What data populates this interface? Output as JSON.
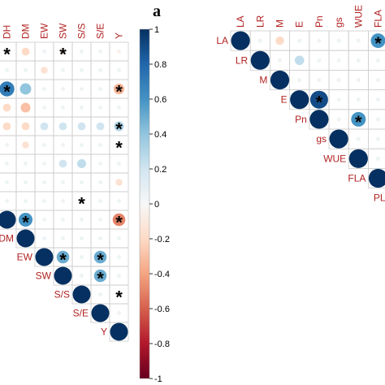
{
  "panel_label": "a",
  "chart_data": [
    {
      "type": "heatmap",
      "variables_top": [
        "DH",
        "DM",
        "EW",
        "SW",
        "S/S",
        "S/E",
        "Y"
      ],
      "variables_diag": [
        "DM",
        "EW",
        "SW",
        "S/S",
        "S/E",
        "Y"
      ],
      "cells": [
        {
          "r": 0,
          "c": 0,
          "v": 0.05,
          "star": true
        },
        {
          "r": 0,
          "c": 1,
          "v": -0.2,
          "star": false
        },
        {
          "r": 0,
          "c": 2,
          "v": 0.05,
          "star": false
        },
        {
          "r": 0,
          "c": 3,
          "v": -0.1,
          "star": true
        },
        {
          "r": 0,
          "c": 4,
          "v": 0.05,
          "star": false
        },
        {
          "r": 0,
          "c": 5,
          "v": 0.05,
          "star": false
        },
        {
          "r": 0,
          "c": 6,
          "v": -0.05,
          "star": false
        },
        {
          "r": 1,
          "c": 0,
          "v": 0.05,
          "star": false
        },
        {
          "r": 1,
          "c": 1,
          "v": 0.05,
          "star": false
        },
        {
          "r": 1,
          "c": 2,
          "v": -0.15,
          "star": false
        },
        {
          "r": 1,
          "c": 3,
          "v": 0.05,
          "star": false
        },
        {
          "r": 1,
          "c": 4,
          "v": 0.05,
          "star": false
        },
        {
          "r": 1,
          "c": 5,
          "v": 0.05,
          "star": false
        },
        {
          "r": 1,
          "c": 6,
          "v": 0.05,
          "star": false
        },
        {
          "r": 2,
          "c": 0,
          "v": 0.7,
          "star": true
        },
        {
          "r": 2,
          "c": 1,
          "v": 0.4,
          "star": false
        },
        {
          "r": 2,
          "c": 2,
          "v": 0.05,
          "star": false
        },
        {
          "r": 2,
          "c": 3,
          "v": 0.05,
          "star": false
        },
        {
          "r": 2,
          "c": 4,
          "v": 0.05,
          "star": false
        },
        {
          "r": 2,
          "c": 5,
          "v": 0.05,
          "star": false
        },
        {
          "r": 2,
          "c": 6,
          "v": -0.35,
          "star": true
        },
        {
          "r": 3,
          "c": 0,
          "v": -0.2,
          "star": false
        },
        {
          "r": 3,
          "c": 1,
          "v": -0.3,
          "star": false
        },
        {
          "r": 3,
          "c": 2,
          "v": 0.05,
          "star": false
        },
        {
          "r": 3,
          "c": 3,
          "v": 0.05,
          "star": false
        },
        {
          "r": 3,
          "c": 4,
          "v": 0.05,
          "star": false
        },
        {
          "r": 3,
          "c": 5,
          "v": 0.05,
          "star": false
        },
        {
          "r": 3,
          "c": 6,
          "v": 0.05,
          "star": false
        },
        {
          "r": 4,
          "c": 0,
          "v": -0.2,
          "star": false
        },
        {
          "r": 4,
          "c": 1,
          "v": -0.2,
          "star": false
        },
        {
          "r": 4,
          "c": 2,
          "v": 0.2,
          "star": false
        },
        {
          "r": 4,
          "c": 3,
          "v": 0.2,
          "star": false
        },
        {
          "r": 4,
          "c": 4,
          "v": 0.2,
          "star": false
        },
        {
          "r": 4,
          "c": 5,
          "v": 0.2,
          "star": false
        },
        {
          "r": 4,
          "c": 6,
          "v": 0.3,
          "star": true
        },
        {
          "r": 5,
          "c": 0,
          "v": 0.05,
          "star": false
        },
        {
          "r": 5,
          "c": 1,
          "v": -0.15,
          "star": false
        },
        {
          "r": 5,
          "c": 2,
          "v": 0.05,
          "star": false
        },
        {
          "r": 5,
          "c": 3,
          "v": 0.05,
          "star": false
        },
        {
          "r": 5,
          "c": 4,
          "v": 0.05,
          "star": false
        },
        {
          "r": 5,
          "c": 5,
          "v": 0.05,
          "star": false
        },
        {
          "r": 5,
          "c": 6,
          "v": 0.05,
          "star": true
        },
        {
          "r": 6,
          "c": 0,
          "v": 0.05,
          "star": false
        },
        {
          "r": 6,
          "c": 1,
          "v": 0.05,
          "star": false
        },
        {
          "r": 6,
          "c": 2,
          "v": 0.05,
          "star": false
        },
        {
          "r": 6,
          "c": 3,
          "v": 0.2,
          "star": false
        },
        {
          "r": 6,
          "c": 4,
          "v": 0.25,
          "star": false
        },
        {
          "r": 6,
          "c": 5,
          "v": 0.05,
          "star": false
        },
        {
          "r": 6,
          "c": 6,
          "v": 0.05,
          "star": false
        },
        {
          "r": 7,
          "c": 0,
          "v": 0.05,
          "star": false
        },
        {
          "r": 7,
          "c": 1,
          "v": 0.05,
          "star": false
        },
        {
          "r": 7,
          "c": 2,
          "v": 0.05,
          "star": false
        },
        {
          "r": 7,
          "c": 3,
          "v": 0.05,
          "star": false
        },
        {
          "r": 7,
          "c": 4,
          "v": 0.05,
          "star": false
        },
        {
          "r": 7,
          "c": 5,
          "v": 0.05,
          "star": false
        },
        {
          "r": 7,
          "c": 6,
          "v": -0.15,
          "star": false
        },
        {
          "r": 8,
          "c": 0,
          "v": 0.05,
          "star": false
        },
        {
          "r": 8,
          "c": 1,
          "v": 0.05,
          "star": false
        },
        {
          "r": 8,
          "c": 2,
          "v": 0.05,
          "star": false
        },
        {
          "r": 8,
          "c": 3,
          "v": 0.05,
          "star": false
        },
        {
          "r": 8,
          "c": 4,
          "v": 0.05,
          "star": true
        },
        {
          "r": 8,
          "c": 5,
          "v": 0.05,
          "star": false
        },
        {
          "r": 8,
          "c": 6,
          "v": 0.05,
          "star": false
        },
        {
          "r": 9,
          "c": 0,
          "v": 1.0,
          "star": false
        },
        {
          "r": 9,
          "c": 1,
          "v": 0.6,
          "star": true
        },
        {
          "r": 9,
          "c": 2,
          "v": 0.05,
          "star": false
        },
        {
          "r": 9,
          "c": 3,
          "v": 0.05,
          "star": false
        },
        {
          "r": 9,
          "c": 4,
          "v": 0.05,
          "star": false
        },
        {
          "r": 9,
          "c": 5,
          "v": 0.05,
          "star": false
        },
        {
          "r": 9,
          "c": 6,
          "v": -0.5,
          "star": true
        },
        {
          "r": 10,
          "c": 1,
          "v": 1.0,
          "star": false
        },
        {
          "r": 10,
          "c": 2,
          "v": 0.05,
          "star": false
        },
        {
          "r": 10,
          "c": 3,
          "v": 0.05,
          "star": false
        },
        {
          "r": 10,
          "c": 4,
          "v": 0.05,
          "star": false
        },
        {
          "r": 10,
          "c": 5,
          "v": 0.05,
          "star": false
        },
        {
          "r": 10,
          "c": 6,
          "v": 0.05,
          "star": false
        },
        {
          "r": 11,
          "c": 2,
          "v": 1.0,
          "star": false
        },
        {
          "r": 11,
          "c": 3,
          "v": 0.5,
          "star": true
        },
        {
          "r": 11,
          "c": 4,
          "v": 0.05,
          "star": false
        },
        {
          "r": 11,
          "c": 5,
          "v": 0.5,
          "star": true
        },
        {
          "r": 11,
          "c": 6,
          "v": 0.05,
          "star": false
        },
        {
          "r": 12,
          "c": 3,
          "v": 1.0,
          "star": false
        },
        {
          "r": 12,
          "c": 4,
          "v": 0.05,
          "star": false
        },
        {
          "r": 12,
          "c": 5,
          "v": 0.5,
          "star": true
        },
        {
          "r": 12,
          "c": 6,
          "v": 0.05,
          "star": false
        },
        {
          "r": 13,
          "c": 4,
          "v": 1.0,
          "star": false
        },
        {
          "r": 13,
          "c": 5,
          "v": 0.05,
          "star": false
        },
        {
          "r": 13,
          "c": 6,
          "v": 0.05,
          "star": true
        },
        {
          "r": 14,
          "c": 5,
          "v": 1.0,
          "star": false
        },
        {
          "r": 14,
          "c": 6,
          "v": 0.05,
          "star": false
        },
        {
          "r": 15,
          "c": 6,
          "v": 1.0,
          "star": false
        }
      ]
    },
    {
      "type": "heatmap",
      "variables_top": [
        "LA",
        "LR",
        "M",
        "E",
        "Pn",
        "gs",
        "WUE",
        "FLA"
      ],
      "variables_diag": [
        "LA",
        "LR",
        "M",
        "E",
        "Pn",
        "gs",
        "WUE",
        "FLA",
        "PL"
      ],
      "cells": [
        {
          "r": 0,
          "c": 0,
          "v": 1.0,
          "star": false
        },
        {
          "r": 0,
          "c": 1,
          "v": 0.05,
          "star": false
        },
        {
          "r": 0,
          "c": 2,
          "v": -0.2,
          "star": false
        },
        {
          "r": 0,
          "c": 3,
          "v": 0.05,
          "star": false
        },
        {
          "r": 0,
          "c": 4,
          "v": 0.05,
          "star": false
        },
        {
          "r": 0,
          "c": 5,
          "v": 0.05,
          "star": false
        },
        {
          "r": 0,
          "c": 6,
          "v": 0.05,
          "star": false
        },
        {
          "r": 0,
          "c": 7,
          "v": 0.6,
          "star": true
        },
        {
          "r": 1,
          "c": 1,
          "v": 1.0,
          "star": false
        },
        {
          "r": 1,
          "c": 2,
          "v": 0.05,
          "star": false
        },
        {
          "r": 1,
          "c": 3,
          "v": 0.25,
          "star": false
        },
        {
          "r": 1,
          "c": 4,
          "v": 0.05,
          "star": false
        },
        {
          "r": 1,
          "c": 5,
          "v": 0.05,
          "star": false
        },
        {
          "r": 1,
          "c": 6,
          "v": 0.05,
          "star": false
        },
        {
          "r": 1,
          "c": 7,
          "v": 0.05,
          "star": false
        },
        {
          "r": 2,
          "c": 2,
          "v": 1.0,
          "star": false
        },
        {
          "r": 2,
          "c": 3,
          "v": 0.05,
          "star": false
        },
        {
          "r": 2,
          "c": 4,
          "v": 0.05,
          "star": false
        },
        {
          "r": 2,
          "c": 5,
          "v": 0.05,
          "star": false
        },
        {
          "r": 2,
          "c": 6,
          "v": 0.05,
          "star": false
        },
        {
          "r": 2,
          "c": 7,
          "v": 0.05,
          "star": false
        },
        {
          "r": 3,
          "c": 3,
          "v": 1.0,
          "star": false
        },
        {
          "r": 3,
          "c": 4,
          "v": 0.9,
          "star": true
        },
        {
          "r": 3,
          "c": 5,
          "v": 0.05,
          "star": false
        },
        {
          "r": 3,
          "c": 6,
          "v": 0.05,
          "star": false
        },
        {
          "r": 3,
          "c": 7,
          "v": 0.05,
          "star": false
        },
        {
          "r": 4,
          "c": 4,
          "v": 1.0,
          "star": false
        },
        {
          "r": 4,
          "c": 5,
          "v": 0.05,
          "star": false
        },
        {
          "r": 4,
          "c": 6,
          "v": 0.6,
          "star": true
        },
        {
          "r": 4,
          "c": 7,
          "v": 0.05,
          "star": false
        },
        {
          "r": 5,
          "c": 5,
          "v": 1.0,
          "star": false
        },
        {
          "r": 5,
          "c": 6,
          "v": 0.05,
          "star": false
        },
        {
          "r": 5,
          "c": 7,
          "v": 0.05,
          "star": false
        },
        {
          "r": 6,
          "c": 6,
          "v": 1.0,
          "star": false
        },
        {
          "r": 6,
          "c": 7,
          "v": 0.05,
          "star": false
        },
        {
          "r": 7,
          "c": 7,
          "v": 1.0,
          "star": false
        },
        {
          "r": 8,
          "c": 8,
          "v": 1.0,
          "star": false
        }
      ]
    }
  ],
  "colorbar": {
    "ticks": [
      "1",
      "0.8",
      "0.6",
      "0.4",
      "0.2",
      "0",
      "-0.2",
      "-0.4",
      "-0.6",
      "-0.8",
      "-1"
    ],
    "range": [
      -1,
      1
    ]
  },
  "colors": {
    "pos_strong": "#053061",
    "pos_mid": "#4393c3",
    "neutral": "#f7f7f7",
    "neg_mid": "#d6604d",
    "neg_strong": "#67001f",
    "label": "#b22222"
  }
}
